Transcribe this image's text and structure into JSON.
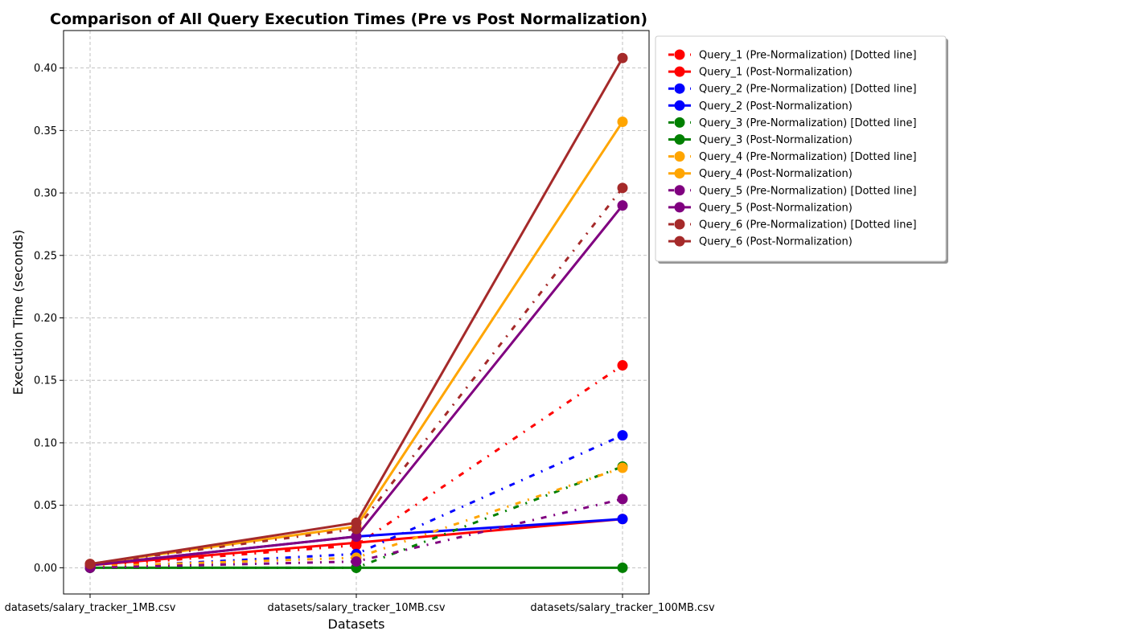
{
  "chart_data": {
    "type": "line",
    "title": "Comparison of All Query Execution Times (Pre vs Post Normalization)",
    "xlabel": "Datasets",
    "ylabel": "Execution Time (seconds)",
    "categories": [
      "datasets/salary_tracker_1MB.csv",
      "datasets/salary_tracker_10MB.csv",
      "datasets/salary_tracker_100MB.csv"
    ],
    "ylim": [
      -0.021,
      0.43
    ],
    "yticks": [
      "0.00",
      "0.05",
      "0.10",
      "0.15",
      "0.20",
      "0.25",
      "0.30",
      "0.35",
      "0.40"
    ],
    "grid": true,
    "legend_position": "outside-right-top",
    "series": [
      {
        "name": "Query_1 (Pre-Normalization) [Dotted line]",
        "values": [
          0.001,
          0.018,
          0.162
        ],
        "color": "#ff0000",
        "style": "dashdot"
      },
      {
        "name": "Query_1 (Post-Normalization)",
        "values": [
          0.002,
          0.02,
          0.039
        ],
        "color": "#ff0000",
        "style": "solid"
      },
      {
        "name": "Query_2 (Pre-Normalization) [Dotted line]",
        "values": [
          0.0,
          0.011,
          0.106
        ],
        "color": "#0000ff",
        "style": "dashdot"
      },
      {
        "name": "Query_2 (Post-Normalization)",
        "values": [
          0.002,
          0.025,
          0.039
        ],
        "color": "#0000ff",
        "style": "solid"
      },
      {
        "name": "Query_3 (Pre-Normalization) [Dotted line]",
        "values": [
          0.0,
          0.0,
          0.081
        ],
        "color": "#008000",
        "style": "dashdot"
      },
      {
        "name": "Query_3 (Post-Normalization)",
        "values": [
          0.0,
          0.0,
          0.0
        ],
        "color": "#008000",
        "style": "solid"
      },
      {
        "name": "Query_4 (Pre-Normalization) [Dotted line]",
        "values": [
          0.001,
          0.008,
          0.08
        ],
        "color": "#ffa500",
        "style": "dashdot"
      },
      {
        "name": "Query_4 (Post-Normalization)",
        "values": [
          0.003,
          0.033,
          0.357
        ],
        "color": "#ffa500",
        "style": "solid"
      },
      {
        "name": "Query_5 (Pre-Normalization) [Dotted line]",
        "values": [
          0.0,
          0.005,
          0.055
        ],
        "color": "#800080",
        "style": "dashdot"
      },
      {
        "name": "Query_5 (Post-Normalization)",
        "values": [
          0.002,
          0.025,
          0.29
        ],
        "color": "#800080",
        "style": "solid"
      },
      {
        "name": "Query_6 (Pre-Normalization) [Dotted line]",
        "values": [
          0.003,
          0.031,
          0.304
        ],
        "color": "#a52a2a",
        "style": "dashdot"
      },
      {
        "name": "Query_6 (Post-Normalization)",
        "values": [
          0.003,
          0.036,
          0.408
        ],
        "color": "#a52a2a",
        "style": "solid"
      }
    ]
  }
}
